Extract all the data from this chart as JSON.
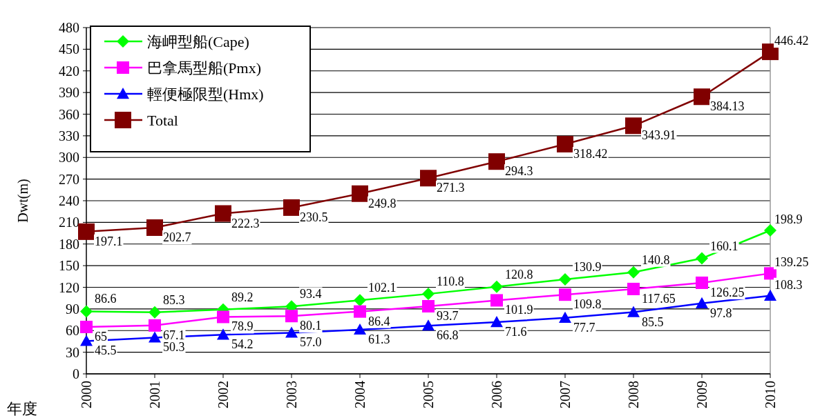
{
  "chart_data": {
    "type": "line",
    "xlabel": "年度",
    "ylabel": "Dwt(m)",
    "categories": [
      "2000",
      "2001",
      "2002",
      "2003",
      "2004",
      "2005",
      "2006",
      "2007",
      "2008",
      "2009",
      "2010"
    ],
    "ylim": [
      0,
      480
    ],
    "yticks": [
      0,
      30,
      60,
      90,
      120,
      150,
      180,
      210,
      240,
      270,
      300,
      330,
      360,
      390,
      420,
      450,
      480
    ],
    "grid": "y",
    "legend": "top left",
    "series": [
      {
        "name": "海岬型船(Cape)",
        "color": "#00ff00",
        "marker": "diamond",
        "values": [
          86.6,
          85.3,
          89.2,
          93.4,
          102.1,
          110.8,
          120.8,
          130.9,
          140.8,
          160.1,
          198.9
        ],
        "value_labels": [
          "86.6",
          "85.3",
          "89.2",
          "93.4",
          "102.1",
          "110.8",
          "120.8",
          "130.9",
          "140.8",
          "160.1",
          "198.9"
        ]
      },
      {
        "name": "巴拿馬型船(Pmx)",
        "color": "#ff00ff",
        "marker": "square",
        "values": [
          65,
          67.1,
          78.9,
          80.1,
          86.4,
          93.7,
          101.9,
          109.8,
          117.65,
          126.25,
          139.25
        ],
        "value_labels": [
          "65",
          "67.1",
          "78.9",
          "80.1",
          "86.4",
          "93.7",
          "101.9",
          "109.8",
          "117.65",
          "126.25",
          "139.25"
        ]
      },
      {
        "name": "輕便極限型(Hmx)",
        "color": "#0000ff",
        "marker": "triangle",
        "values": [
          45.5,
          50.3,
          54.2,
          57.0,
          61.3,
          66.8,
          71.6,
          77.7,
          85.5,
          97.8,
          108.3
        ],
        "value_labels": [
          "45.5",
          "50.3",
          "54.2",
          "57.0",
          "61.3",
          "66.8",
          "71.6",
          "77.7",
          "85.5",
          "97.8",
          "108.3"
        ]
      },
      {
        "name": "Total",
        "color": "#800000",
        "marker": "square",
        "values": [
          197.1,
          202.7,
          222.3,
          230.5,
          249.8,
          271.3,
          294.3,
          318.42,
          343.91,
          384.13,
          446.42
        ],
        "value_labels": [
          "197.1",
          "202.7",
          "222.3",
          "230.5",
          "249.8",
          "271.3",
          "294.3",
          "318.42",
          "343.91",
          "384.13",
          "446.42"
        ]
      }
    ]
  }
}
